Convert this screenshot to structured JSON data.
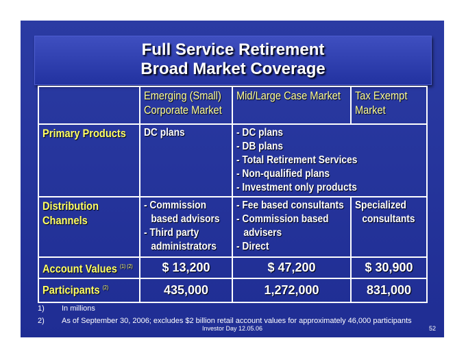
{
  "title": [
    "Full Service Retirement",
    "Broad Market Coverage"
  ],
  "table": {
    "header": [
      [
        "Emerging (Small)",
        "Corporate Market"
      ],
      [
        "Mid/Large Case Market"
      ],
      [
        "Tax Exempt",
        "Market"
      ]
    ],
    "rows": [
      {
        "label": [
          "Primary Products"
        ],
        "cells": [
          [
            "DC plans"
          ],
          [
            "- DC plans",
            "- DB plans",
            "- Total Retirement Services",
            "- Non-qualified plans",
            "- Investment only products"
          ]
        ]
      },
      {
        "label": [
          "Distribution",
          "Channels"
        ],
        "cells": [
          [
            "- Commission based advisors",
            "- Third party administrators"
          ],
          [
            "- Fee based consultants",
            "- Commission based advisers",
            "- Direct"
          ],
          [
            "Specialized consultants"
          ]
        ]
      },
      {
        "label": [
          "Account Values"
        ],
        "note": "(1) (2)",
        "cells": [
          "$ 13,200",
          "$ 47,200",
          "$ 30,900"
        ]
      },
      {
        "label": [
          "Participants"
        ],
        "note": "(2)",
        "cells": [
          "435,000",
          "1,272,000",
          "831,000"
        ]
      }
    ]
  },
  "footnotes": [
    {
      "mark": "1)",
      "text": "In millions"
    },
    {
      "mark": "2)",
      "text": "As of September 30, 2006; excludes $2 billion retail account values for approximately 46,000 participants"
    }
  ],
  "footer": "Investor Day 12.05.06",
  "page": "52"
}
